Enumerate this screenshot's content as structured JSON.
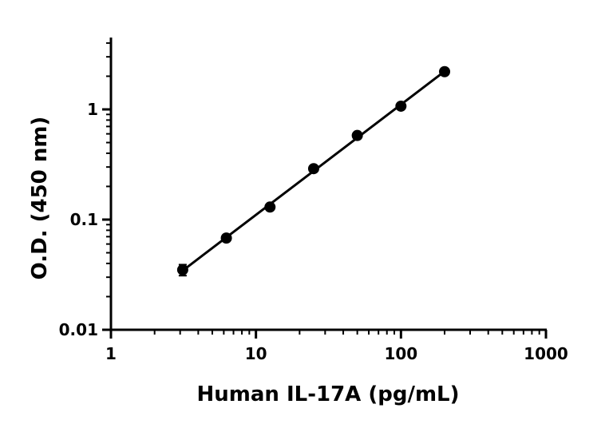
{
  "chart_data": {
    "type": "scatter",
    "title": "",
    "xlabel": "Human IL-17A (pg/mL)",
    "ylabel": "O.D. (450 nm)",
    "x_scale": "log",
    "y_scale": "log",
    "xlim": [
      1,
      1000
    ],
    "ylim": [
      0.01,
      4
    ],
    "x_ticks": [
      {
        "value": 1,
        "label": "1"
      },
      {
        "value": 10,
        "label": "10"
      },
      {
        "value": 100,
        "label": "100"
      },
      {
        "value": 1000,
        "label": "1000"
      }
    ],
    "y_ticks": [
      {
        "value": 0.01,
        "label": "0.01"
      },
      {
        "value": 0.1,
        "label": "0.1"
      },
      {
        "value": 1,
        "label": "1"
      }
    ],
    "grid": false,
    "legend": "none",
    "series": [
      {
        "x": [
          3.125,
          6.25,
          12.5,
          25,
          50,
          100,
          200
        ],
        "y": [
          0.035,
          0.068,
          0.13,
          0.29,
          0.58,
          1.07,
          2.2
        ],
        "error": [
          0.004,
          0.002,
          0.003,
          0.005,
          0.008,
          0.015,
          0.03
        ],
        "marker": "circle",
        "color": "#000000",
        "fit_line": true
      }
    ]
  }
}
